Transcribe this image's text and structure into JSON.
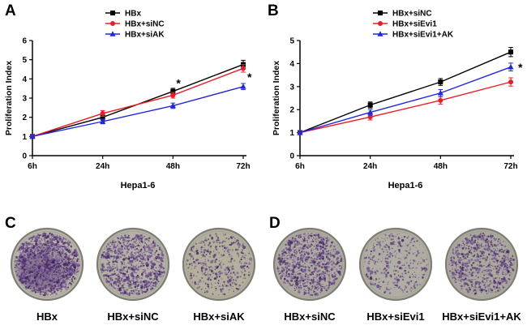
{
  "figure": {
    "panel_letters": [
      "A",
      "B",
      "C",
      "D"
    ]
  },
  "chart_data": [
    {
      "panel": "A",
      "type": "line",
      "x_labels": [
        "6h",
        "24h",
        "48h",
        "72h"
      ],
      "xlabel": "Hepa1-6",
      "ylabel": "Proliferation Index",
      "ylim": [
        0,
        6
      ],
      "yticks": [
        0,
        1,
        2,
        3,
        4,
        5,
        6
      ],
      "legend_position": "top-center-inside",
      "grid": false,
      "series": [
        {
          "name": "HBx",
          "color": "#000000",
          "marker": "square",
          "values": [
            1.0,
            2.0,
            3.35,
            4.75
          ],
          "errors": [
            0.06,
            0.15,
            0.16,
            0.22
          ]
        },
        {
          "name": "HBx+siNC",
          "color": "#ec1c24",
          "marker": "circle",
          "values": [
            1.0,
            2.2,
            3.15,
            4.55
          ],
          "errors": [
            0.06,
            0.15,
            0.15,
            0.2
          ]
        },
        {
          "name": "HBx+siAK",
          "color": "#2026e2",
          "marker": "triangle",
          "values": [
            1.0,
            1.78,
            2.6,
            3.6
          ],
          "errors": [
            0.06,
            0.12,
            0.14,
            0.16
          ]
        }
      ],
      "annotations": [
        {
          "xi": 2,
          "y": 3.75,
          "text": "*",
          "dx": 4
        },
        {
          "xi": 3,
          "y": 4.05,
          "text": "*",
          "dx": 5
        }
      ]
    },
    {
      "panel": "B",
      "type": "line",
      "x_labels": [
        "6h",
        "24h",
        "48h",
        "72h"
      ],
      "xlabel": "Hepa1-6",
      "ylabel": "Proliferation Index",
      "ylim": [
        0,
        5
      ],
      "yticks": [
        0,
        1,
        2,
        3,
        4,
        5
      ],
      "legend_position": "top-center-inside",
      "grid": false,
      "series": [
        {
          "name": "HBx+siNC",
          "color": "#000000",
          "marker": "square",
          "values": [
            1.0,
            2.2,
            3.2,
            4.5
          ],
          "errors": [
            0.06,
            0.13,
            0.15,
            0.2
          ]
        },
        {
          "name": "HBx+siEvi1",
          "color": "#ec1c24",
          "marker": "circle",
          "values": [
            1.0,
            1.68,
            2.4,
            3.2
          ],
          "errors": [
            0.06,
            0.13,
            0.16,
            0.18
          ]
        },
        {
          "name": "HBx+siEvi1+AK",
          "color": "#2026e2",
          "marker": "triangle",
          "values": [
            1.0,
            1.88,
            2.72,
            3.85
          ],
          "errors": [
            0.06,
            0.12,
            0.15,
            0.17
          ]
        }
      ],
      "annotations": [
        {
          "xi": 3,
          "y": 3.8,
          "text": "*",
          "dx": 9
        }
      ]
    }
  ],
  "colony_panels": [
    {
      "panel": "C",
      "dishes": [
        {
          "label": "HBx",
          "colony_density": "very-high",
          "count": 1600,
          "seed": 11,
          "bg": "#b9b5a8",
          "confluent": true
        },
        {
          "label": "HBx+siNC",
          "colony_density": "high",
          "count": 1050,
          "seed": 22,
          "bg": "#b4b1a5",
          "confluent": false
        },
        {
          "label": "HBx+siAK",
          "colony_density": "medium",
          "count": 470,
          "seed": 33,
          "bg": "#b3b09c",
          "confluent": false
        }
      ]
    },
    {
      "panel": "D",
      "dishes": [
        {
          "label": "HBx+siNC",
          "colony_density": "high",
          "count": 950,
          "seed": 44,
          "bg": "#aeaba0",
          "confluent": false
        },
        {
          "label": "HBx+siEvi1",
          "colony_density": "low",
          "count": 360,
          "seed": 55,
          "bg": "#b0ada2",
          "confluent": false
        },
        {
          "label": "HBx+siEvi1+AK",
          "colony_density": "high",
          "count": 820,
          "seed": 66,
          "bg": "#aba89d",
          "confluent": false
        }
      ]
    }
  ],
  "style": {
    "series_black": "#000000",
    "series_red": "#ec1c24",
    "series_blue": "#2026e2",
    "colony_palette": [
      "#48296a",
      "#5a3a7f",
      "#6c4e94",
      "#3c2056",
      "#7a5c9e"
    ]
  }
}
